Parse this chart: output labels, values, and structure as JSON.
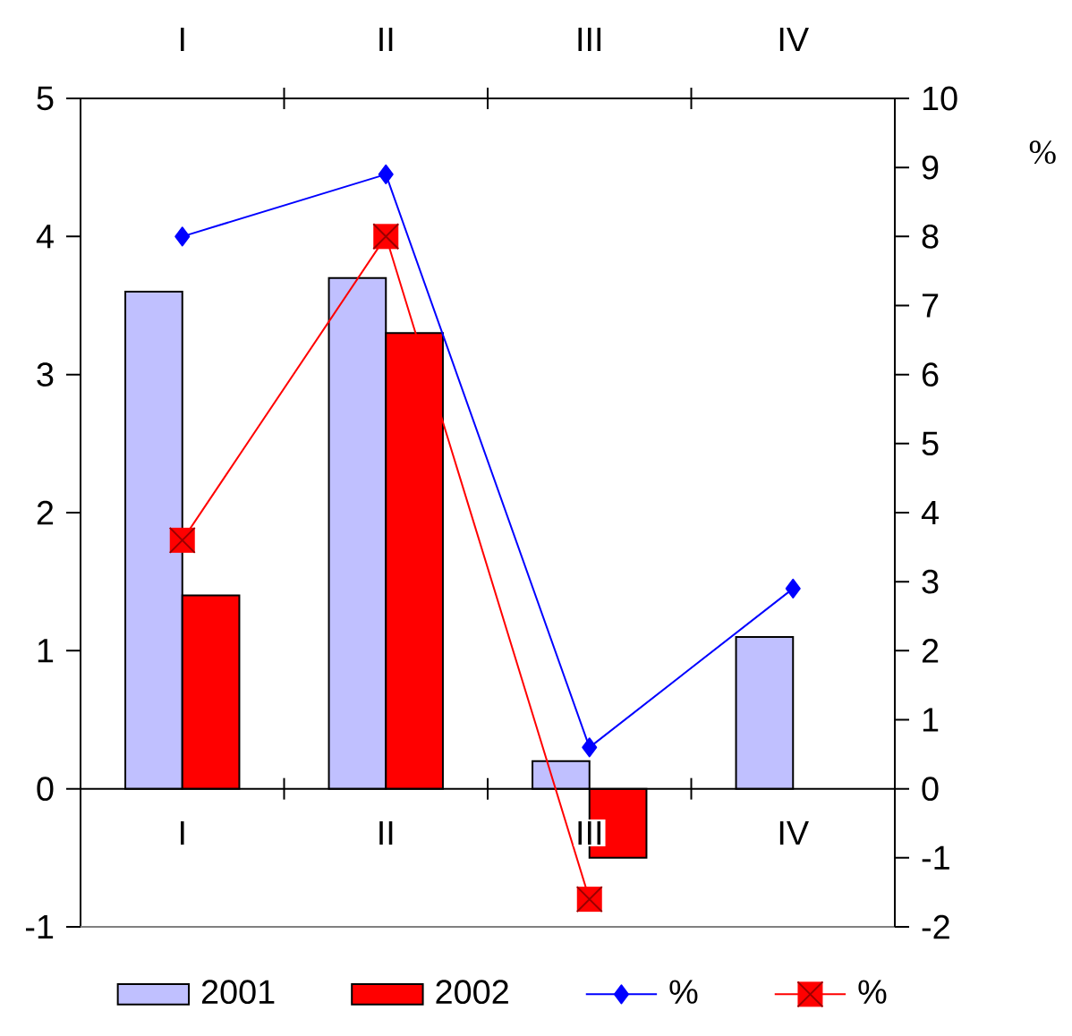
{
  "chart_data": {
    "type": "bar",
    "categories": [
      "I",
      "II",
      "III",
      "IV"
    ],
    "y2label": "%",
    "ylim": [
      -1,
      5
    ],
    "yticks": [
      -1,
      0,
      1,
      2,
      3,
      4,
      5
    ],
    "y2lim": [
      -2,
      10
    ],
    "y2ticks": [
      -2,
      -1,
      0,
      1,
      2,
      3,
      4,
      5,
      6,
      7,
      8,
      9,
      10
    ],
    "legend": "bottom",
    "series": [
      {
        "name": "2001",
        "color": "#c0c0ff",
        "values": [
          3.6,
          3.7,
          0.2,
          1.1
        ]
      },
      {
        "name": "2002",
        "color": "#ff0000",
        "values": [
          1.4,
          3.3,
          -0.5,
          null
        ]
      },
      {
        "name": "%",
        "type": "line",
        "axis": "y2",
        "color": "#0000ff",
        "marker": "diamond",
        "values": [
          8,
          8.9,
          0.6,
          2.9
        ]
      },
      {
        "name": "%",
        "type": "line",
        "axis": "y2",
        "color": "#ff0000",
        "marker": "square",
        "values": [
          3.6,
          8,
          -1.6,
          null
        ]
      }
    ]
  }
}
